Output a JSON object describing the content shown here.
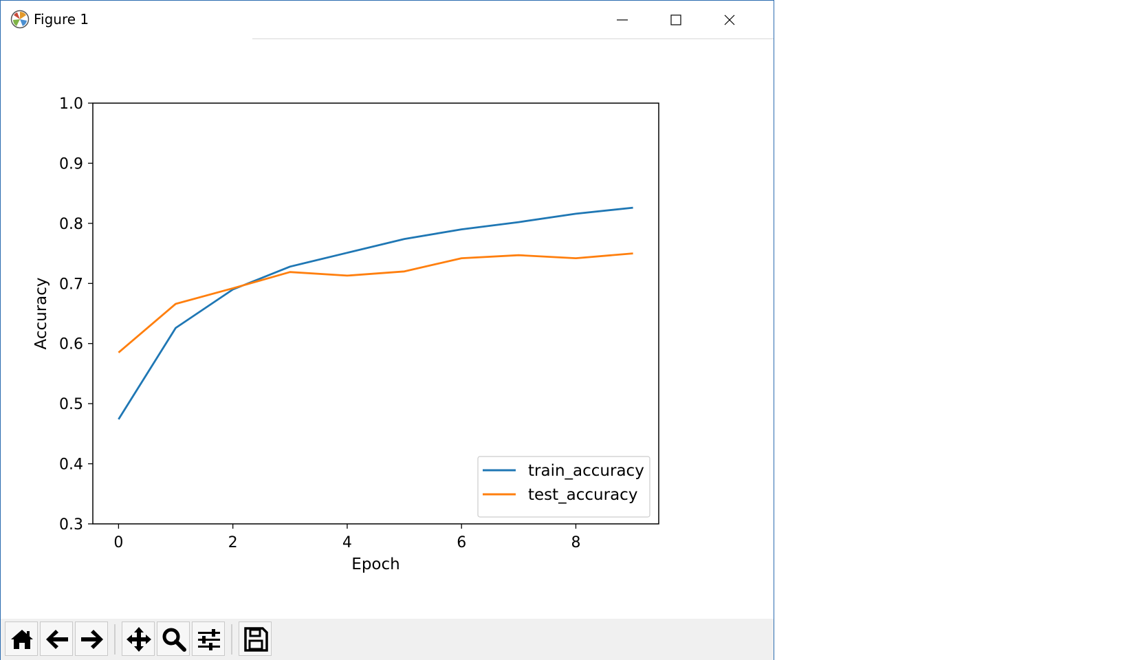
{
  "window": {
    "title": "Figure 1",
    "controls": [
      "minimize-icon",
      "maximize-icon",
      "close-icon"
    ]
  },
  "toolbar": {
    "buttons": [
      {
        "name": "home",
        "icon": "home-icon"
      },
      {
        "name": "back",
        "icon": "arrow-left-icon"
      },
      {
        "name": "forward",
        "icon": "arrow-right-icon"
      },
      {
        "name": "pan",
        "icon": "move-icon"
      },
      {
        "name": "zoom",
        "icon": "magnifier-icon"
      },
      {
        "name": "configure-subplots",
        "icon": "sliders-icon"
      },
      {
        "name": "save",
        "icon": "floppy-disk-icon"
      }
    ]
  },
  "chart_data": {
    "type": "line",
    "title": "",
    "xlabel": "Epoch",
    "ylabel": "Accuracy",
    "xlim": [
      -0.45,
      9.45
    ],
    "ylim": [
      0.3,
      1.0
    ],
    "xticks": [
      0,
      2,
      4,
      6,
      8
    ],
    "xtick_labels": [
      "0",
      "2",
      "4",
      "6",
      "8"
    ],
    "yticks": [
      0.3,
      0.4,
      0.5,
      0.6,
      0.7,
      0.8,
      0.9,
      1.0
    ],
    "ytick_labels": [
      "0.3",
      "0.4",
      "0.5",
      "0.6",
      "0.7",
      "0.8",
      "0.9",
      "1.0"
    ],
    "grid": false,
    "legend_position": "lower-right",
    "x": [
      0,
      1,
      2,
      3,
      4,
      5,
      6,
      7,
      8,
      9
    ],
    "series": [
      {
        "name": "train_accuracy",
        "color": "#1f77b4",
        "values": [
          0.474,
          0.626,
          0.69,
          0.728,
          0.751,
          0.774,
          0.79,
          0.802,
          0.816,
          0.826
        ]
      },
      {
        "name": "test_accuracy",
        "color": "#ff7f0e",
        "values": [
          0.585,
          0.666,
          0.692,
          0.719,
          0.713,
          0.72,
          0.742,
          0.747,
          0.742,
          0.75
        ]
      }
    ]
  }
}
